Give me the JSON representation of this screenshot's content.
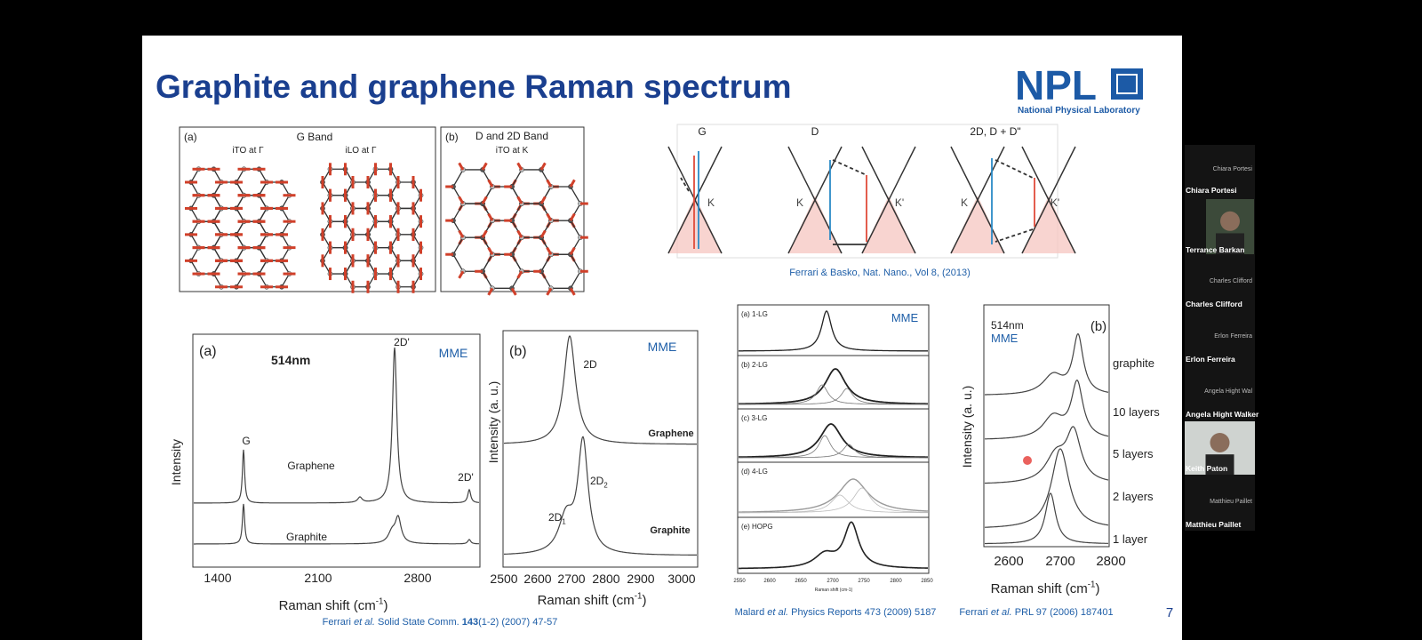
{
  "header": {
    "title": "Graphite and graphene Raman spectrum",
    "logo": "NPL",
    "logo_subtitle": "National Physical Laboratory"
  },
  "phonon_figure": {
    "panel_a": "(a)",
    "a_title": "G Band",
    "a_mode_1": "iTO at Γ",
    "a_mode_2": "iLO at Γ",
    "panel_b": "(b)",
    "b_title": "D and 2D Band",
    "b_mode": "iTO at K"
  },
  "dispersion_figure": {
    "process_labels": [
      "G",
      "D",
      "2D, D + D\""
    ],
    "valley_labels": [
      "K",
      "K",
      "K'",
      "K",
      "K'"
    ],
    "citation": "Ferrari & Basko, Nat. Nano., Vol 8, (2013)"
  },
  "spectrum_a": {
    "panel": "(a)",
    "laser": "514nm",
    "tag": "MME",
    "peak_g": "G",
    "peak_2d_main": "2D'",
    "peak_2d_side": "2D'",
    "curve_graphene": "Graphene",
    "curve_graphite": "Graphite",
    "x_ticks": [
      "1400",
      "2100",
      "2800"
    ],
    "y_label": "Intensity",
    "x_label": {
      "text": "Raman shift (cm",
      "superscript": "-1",
      "close": ")"
    },
    "citation": {
      "author": "Ferrari ",
      "etal": "et al.",
      "journal": " Solid State Comm. ",
      "volume": "143",
      "rest": "(1-2) (2007) 47-57"
    }
  },
  "spectrum_b": {
    "panel": "(b)",
    "tag": "MME",
    "peak_2d": "2D",
    "curve_graphene": "Graphene",
    "peak_2d2": "2D",
    "peak_2d2_sub": "2",
    "peak_2d1": "2D",
    "peak_2d1_sub": "1",
    "curve_graphite": "Graphite",
    "x_ticks": [
      "2500",
      "2600",
      "2700",
      "2800",
      "2900",
      "3000"
    ],
    "y_label": "Intensity (a. u.)",
    "x_label": {
      "text": "Raman shift (cm",
      "superscript": "-1",
      "close": ")"
    }
  },
  "spectrum_layers": {
    "tag": "MME",
    "panels": [
      "(a) 1-LG",
      "(b) 2-LG",
      "(c) 3-LG",
      "(d) 4-LG",
      "(e) HOPG"
    ],
    "x_ticks": [
      "2550",
      "2600",
      "2650",
      "2700",
      "2750",
      "2800",
      "2850"
    ],
    "x_label": "Raman shift (cm-1)",
    "citation": {
      "author": "Malard ",
      "etal": "et al.",
      "rest": " Physics Reports 473 (2009) 5187"
    }
  },
  "spectrum_thickness": {
    "laser": "514nm",
    "tag": "MME",
    "panel": "(b)",
    "curves": [
      "graphite",
      "10 layers",
      "5 layers",
      "2 layers",
      "1 layer"
    ],
    "x_ticks": [
      "2600",
      "2700",
      "2800"
    ],
    "y_label": "Intensity (a. u.)",
    "x_label": {
      "text": "Raman shift (cm",
      "superscript": "-1",
      "close": ")"
    },
    "citation": {
      "author": "Ferrari ",
      "etal": "et al.",
      "rest": " PRL 97 (2006) 187401"
    }
  },
  "slide_number": "7",
  "participants": [
    {
      "caption": "Chiara Portesi",
      "name": "Chiara Portesi"
    },
    {
      "name": "Terrance Barkan"
    },
    {
      "caption": "Charles Clifford",
      "name": "Charles Clifford"
    },
    {
      "caption": "Erlon Ferreira",
      "name": "Erlon Ferreira"
    },
    {
      "caption": "Angela Hight Wal",
      "name": "Angela Hight Walker"
    },
    {
      "name": "Keith Paton"
    },
    {
      "caption": "Matthieu Paillet",
      "name": "Matthieu Paillet"
    }
  ]
}
